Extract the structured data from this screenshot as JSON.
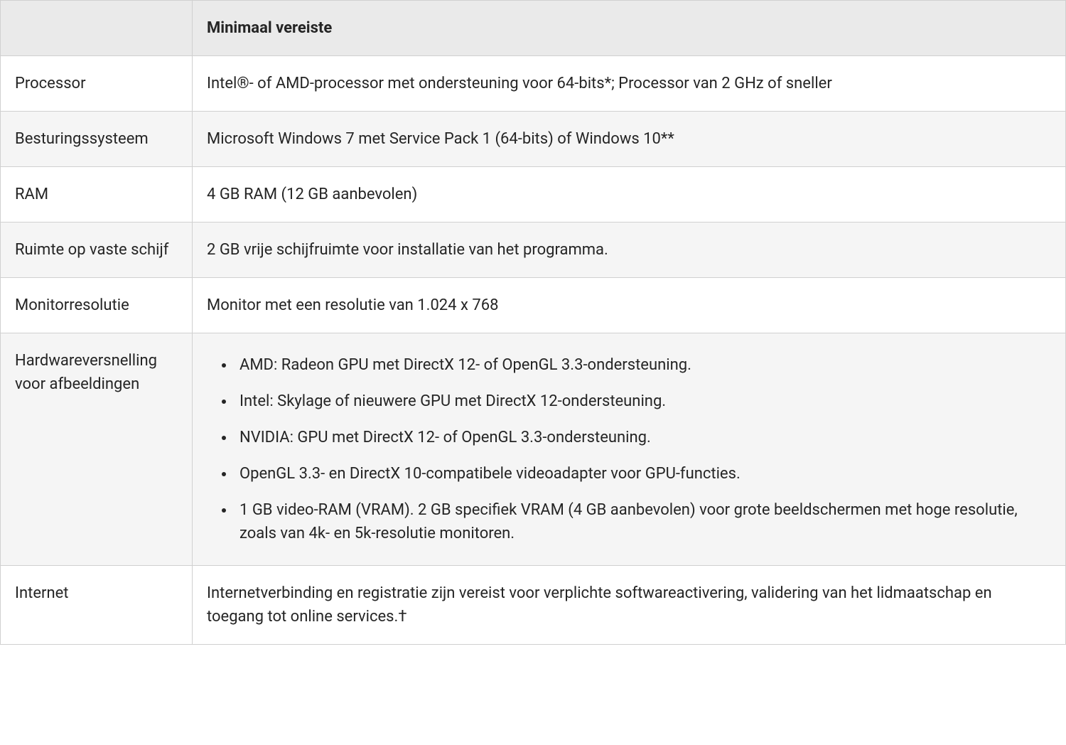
{
  "table": {
    "type": "table",
    "header": {
      "col1": "",
      "col2": "Minimaal vereiste"
    },
    "rows": [
      {
        "label": "Processor",
        "value": "Intel®- of AMD-processor met ondersteuning voor 64-bits*; Processor van 2 GHz of sneller",
        "type": "text"
      },
      {
        "label": "Besturingssysteem",
        "value": "Microsoft Windows 7 met Service Pack 1 (64-bits) of Windows 10**",
        "type": "text"
      },
      {
        "label": "RAM",
        "value": "4 GB RAM (12 GB aanbevolen)",
        "type": "text"
      },
      {
        "label": "Ruimte op vaste schijf",
        "value": "2 GB vrije schijfruimte voor installatie van het programma.",
        "type": "text"
      },
      {
        "label": "Monitorresolutie",
        "value": "Monitor met een resolutie van 1.024 x 768",
        "type": "text"
      },
      {
        "label": "Hardwareversnelling voor afbeeldingen",
        "type": "list",
        "items": [
          "AMD: Radeon GPU met DirectX 12- of OpenGL 3.3-ondersteuning.",
          "Intel: Skylage of nieuwere GPU met DirectX 12-ondersteuning.",
          "NVIDIA: GPU met DirectX 12- of OpenGL 3.3-ondersteuning.",
          "OpenGL 3.3- en DirectX 10-compatibele videoadapter voor GPU-functies.",
          "1 GB video-RAM (VRAM). 2 GB specifiek VRAM (4 GB aanbevolen) voor grote beeldschermen met hoge resolutie, zoals van 4k- en 5k-resolutie monitoren."
        ]
      },
      {
        "label": "Internet",
        "value": "Internetverbinding en registratie zijn vereist voor verplichte softwareactivering, validering van het lidmaatschap en toegang tot online services.†",
        "type": "text"
      }
    ],
    "styling": {
      "border_color": "#d0d0d0",
      "header_bg": "#eaeaea",
      "row_odd_bg": "#ffffff",
      "row_even_bg": "#f5f5f5",
      "text_color": "#252525",
      "font_size": 22,
      "cell_padding": "22px 20px",
      "label_col_width": 270
    }
  }
}
